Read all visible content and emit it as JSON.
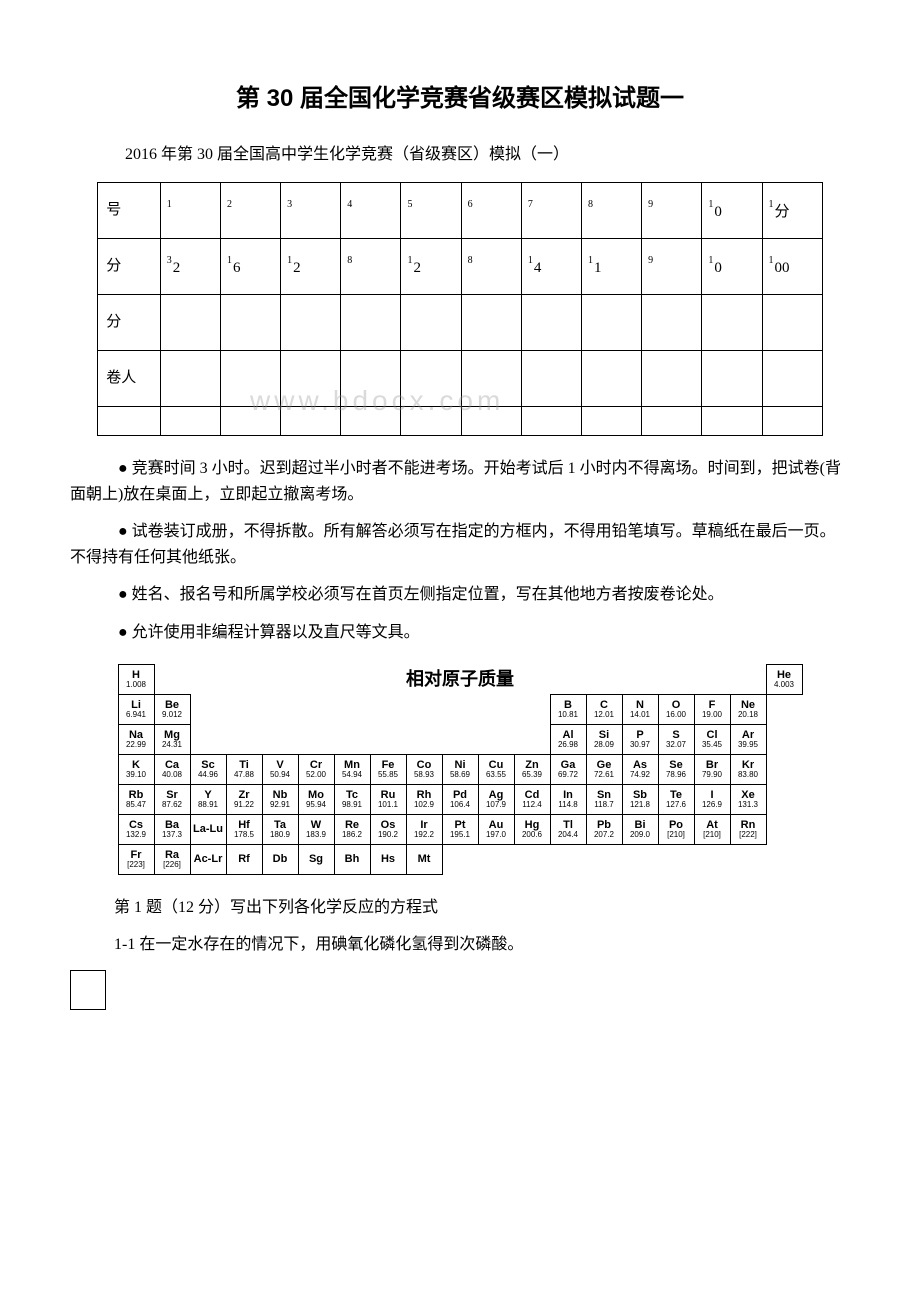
{
  "title": "第 30 届全国化学竞赛省级赛区模拟试题一",
  "subtitle": "2016 年第 30 届全国高中学生化学竞赛（省级赛区）模拟（一）",
  "watermark": "www.bdocx.com",
  "score_table": {
    "rows": [
      {
        "label": "号",
        "cells": [
          "",
          "",
          "",
          "",
          "",
          "",
          "",
          "",
          "",
          "0",
          "分"
        ],
        "sups": [
          "1",
          "2",
          "3",
          "4",
          "5",
          "6",
          "7",
          "8",
          "9",
          "1",
          "1"
        ]
      },
      {
        "label": "分",
        "cells": [
          "2",
          "6",
          "2",
          "",
          "2",
          "",
          "4",
          "1",
          "",
          "0",
          "00"
        ],
        "sups": [
          "3",
          "1",
          "1",
          "8",
          "1",
          "8",
          "1",
          "1",
          "9",
          "1",
          "1"
        ]
      },
      {
        "label": "分",
        "cells": [
          "",
          "",
          "",
          "",
          "",
          "",
          "",
          "",
          "",
          "",
          ""
        ],
        "sups": [
          "",
          "",
          "",
          "",
          "",
          "",
          "",
          "",
          "",
          "",
          ""
        ]
      },
      {
        "label": "卷人",
        "cells": [
          "",
          "",
          "",
          "",
          "",
          "",
          "",
          "",
          "",
          "",
          ""
        ],
        "sups": [
          "",
          "",
          "",
          "",
          "",
          "",
          "",
          "",
          "",
          "",
          ""
        ]
      }
    ]
  },
  "rules": [
    "● 竞赛时间 3 小时。迟到超过半小时者不能进考场。开始考试后 1 小时内不得离场。时间到，把试卷(背面朝上)放在桌面上，立即起立撤离考场。",
    "● 试卷装订成册，不得拆散。所有解答必须写在指定的方框内，不得用铅笔填写。草稿纸在最后一页。不得持有任何其他纸张。",
    "● 姓名、报名号和所属学校必须写在首页左侧指定位置，写在其他地方者按废卷论处。",
    "● 允许使用非编程计算器以及直尺等文具。"
  ],
  "periodic_title": "相对原子质量",
  "periodic": [
    [
      {
        "s": "H",
        "m": "1.008"
      },
      {
        "t": "empty"
      },
      {
        "t": "title",
        "span": 15
      },
      {
        "t": "empty"
      },
      {
        "s": "He",
        "m": "4.003"
      }
    ],
    [
      {
        "s": "Li",
        "m": "6.941"
      },
      {
        "s": "Be",
        "m": "9.012"
      },
      {
        "t": "empty",
        "span": 10
      },
      {
        "s": "B",
        "m": "10.81"
      },
      {
        "s": "C",
        "m": "12.01"
      },
      {
        "s": "N",
        "m": "14.01"
      },
      {
        "s": "O",
        "m": "16.00"
      },
      {
        "s": "F",
        "m": "19.00"
      },
      {
        "s": "Ne",
        "m": "20.18"
      }
    ],
    [
      {
        "s": "Na",
        "m": "22.99"
      },
      {
        "s": "Mg",
        "m": "24.31"
      },
      {
        "t": "empty",
        "span": 10
      },
      {
        "s": "Al",
        "m": "26.98"
      },
      {
        "s": "Si",
        "m": "28.09"
      },
      {
        "s": "P",
        "m": "30.97"
      },
      {
        "s": "S",
        "m": "32.07"
      },
      {
        "s": "Cl",
        "m": "35.45"
      },
      {
        "s": "Ar",
        "m": "39.95"
      }
    ],
    [
      {
        "s": "K",
        "m": "39.10"
      },
      {
        "s": "Ca",
        "m": "40.08"
      },
      {
        "s": "Sc",
        "m": "44.96"
      },
      {
        "s": "Ti",
        "m": "47.88"
      },
      {
        "s": "V",
        "m": "50.94"
      },
      {
        "s": "Cr",
        "m": "52.00"
      },
      {
        "s": "Mn",
        "m": "54.94"
      },
      {
        "s": "Fe",
        "m": "55.85"
      },
      {
        "s": "Co",
        "m": "58.93"
      },
      {
        "s": "Ni",
        "m": "58.69"
      },
      {
        "s": "Cu",
        "m": "63.55"
      },
      {
        "s": "Zn",
        "m": "65.39"
      },
      {
        "s": "Ga",
        "m": "69.72"
      },
      {
        "s": "Ge",
        "m": "72.61"
      },
      {
        "s": "As",
        "m": "74.92"
      },
      {
        "s": "Se",
        "m": "78.96"
      },
      {
        "s": "Br",
        "m": "79.90"
      },
      {
        "s": "Kr",
        "m": "83.80"
      }
    ],
    [
      {
        "s": "Rb",
        "m": "85.47"
      },
      {
        "s": "Sr",
        "m": "87.62"
      },
      {
        "s": "Y",
        "m": "88.91"
      },
      {
        "s": "Zr",
        "m": "91.22"
      },
      {
        "s": "Nb",
        "m": "92.91"
      },
      {
        "s": "Mo",
        "m": "95.94"
      },
      {
        "s": "Tc",
        "m": "98.91"
      },
      {
        "s": "Ru",
        "m": "101.1"
      },
      {
        "s": "Rh",
        "m": "102.9"
      },
      {
        "s": "Pd",
        "m": "106.4"
      },
      {
        "s": "Ag",
        "m": "107.9"
      },
      {
        "s": "Cd",
        "m": "112.4"
      },
      {
        "s": "In",
        "m": "114.8"
      },
      {
        "s": "Sn",
        "m": "118.7"
      },
      {
        "s": "Sb",
        "m": "121.8"
      },
      {
        "s": "Te",
        "m": "127.6"
      },
      {
        "s": "I",
        "m": "126.9"
      },
      {
        "s": "Xe",
        "m": "131.3"
      }
    ],
    [
      {
        "s": "Cs",
        "m": "132.9"
      },
      {
        "s": "Ba",
        "m": "137.3"
      },
      {
        "s": "La-Lu",
        "m": ""
      },
      {
        "s": "Hf",
        "m": "178.5"
      },
      {
        "s": "Ta",
        "m": "180.9"
      },
      {
        "s": "W",
        "m": "183.9"
      },
      {
        "s": "Re",
        "m": "186.2"
      },
      {
        "s": "Os",
        "m": "190.2"
      },
      {
        "s": "Ir",
        "m": "192.2"
      },
      {
        "s": "Pt",
        "m": "195.1"
      },
      {
        "s": "Au",
        "m": "197.0"
      },
      {
        "s": "Hg",
        "m": "200.6"
      },
      {
        "s": "Tl",
        "m": "204.4"
      },
      {
        "s": "Pb",
        "m": "207.2"
      },
      {
        "s": "Bi",
        "m": "209.0"
      },
      {
        "s": "Po",
        "m": "[210]"
      },
      {
        "s": "At",
        "m": "[210]"
      },
      {
        "s": "Rn",
        "m": "[222]"
      }
    ],
    [
      {
        "s": "Fr",
        "m": "[223]"
      },
      {
        "s": "Ra",
        "m": "[226]"
      },
      {
        "s": "Ac-Lr",
        "m": ""
      },
      {
        "s": "Rf",
        "m": ""
      },
      {
        "s": "Db",
        "m": ""
      },
      {
        "s": "Sg",
        "m": ""
      },
      {
        "s": "Bh",
        "m": ""
      },
      {
        "s": "Hs",
        "m": ""
      },
      {
        "s": "Mt",
        "m": ""
      },
      {
        "t": "empty"
      },
      {
        "t": "empty"
      },
      {
        "t": "empty"
      },
      {
        "t": "empty"
      },
      {
        "t": "empty"
      },
      {
        "t": "empty"
      },
      {
        "t": "empty"
      },
      {
        "t": "empty"
      },
      {
        "t": "empty"
      }
    ]
  ],
  "question": {
    "q1": "第 1 题（12 分）写出下列各化学反应的方程式",
    "q1_1": "1-1 在一定水存在的情况下，用碘氧化磷化氢得到次磷酸。"
  }
}
